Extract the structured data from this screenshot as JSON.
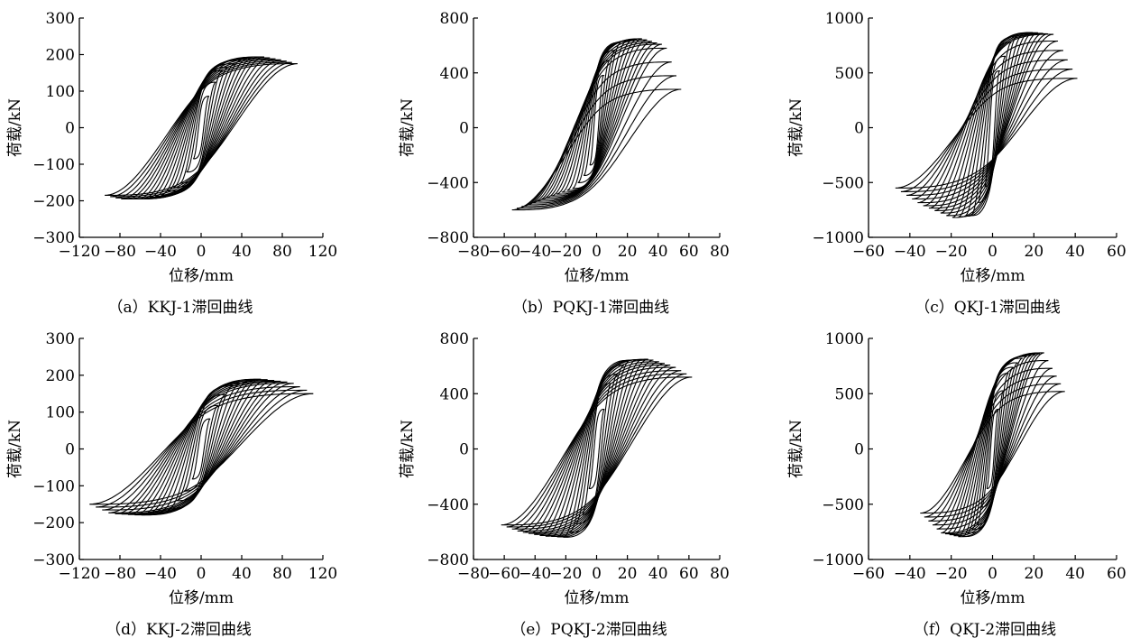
{
  "figure": {
    "panels": [
      {
        "caption": "（a）KKJ-1滞回曲线"
      },
      {
        "caption": "（b）PQKJ-1滞回曲线"
      },
      {
        "caption": "（c）QKJ-1滞回曲线"
      },
      {
        "caption": "（d）KKJ-2滞回曲线"
      },
      {
        "caption": "（e）PQKJ-2滞回曲线"
      },
      {
        "caption": "（f）QKJ-2滞回曲线"
      }
    ]
  },
  "chart_data": [
    {
      "type": "line",
      "title": "（a）KKJ-1滞回曲线",
      "xlabel": "位移/mm",
      "ylabel": "荷载/kN",
      "xlim": [
        -120,
        120
      ],
      "ylim": [
        -300,
        300
      ],
      "xticks": [
        -120,
        -80,
        -40,
        0,
        40,
        80,
        120
      ],
      "yticks": [
        -300,
        -200,
        -100,
        0,
        100,
        200,
        300
      ],
      "xtick_labels": [
        "−120",
        "−80",
        "−40",
        "0",
        "40",
        "80",
        "120"
      ],
      "ytick_labels": [
        "−300",
        "−200",
        "−100",
        "0",
        "100",
        "200",
        "300"
      ],
      "grid": false,
      "color": "#000000",
      "envelope": {
        "displacement_mm": [
          -95,
          -80,
          -60,
          -40,
          -20,
          -5,
          0,
          5,
          20,
          40,
          60,
          80,
          95
        ],
        "load_kN": [
          -185,
          -195,
          -195,
          -185,
          -150,
          -70,
          0,
          70,
          155,
          185,
          195,
          185,
          175
        ]
      }
    },
    {
      "type": "line",
      "title": "（b）PQKJ-1滞回曲线",
      "xlabel": "位移/mm",
      "ylabel": "荷载/kN",
      "xlim": [
        -80,
        80
      ],
      "ylim": [
        -800,
        800
      ],
      "xticks": [
        -80,
        -60,
        -40,
        -20,
        0,
        20,
        40,
        60,
        80
      ],
      "yticks": [
        -800,
        -400,
        0,
        400,
        800
      ],
      "xtick_labels": [
        "−80",
        "−60",
        "−40",
        "−20",
        "0",
        "20",
        "40",
        "60",
        "80"
      ],
      "ytick_labels": [
        "−800",
        "−400",
        "0",
        "400",
        "800"
      ],
      "grid": false,
      "color": "#000000",
      "envelope": {
        "displacement_mm": [
          -55,
          -45,
          -30,
          -15,
          -5,
          0,
          5,
          15,
          30,
          45,
          55
        ],
        "load_kN": [
          -600,
          -560,
          -500,
          -440,
          -300,
          0,
          420,
          620,
          650,
          600,
          280
        ]
      }
    },
    {
      "type": "line",
      "title": "（c）QKJ-1滞回曲线",
      "xlabel": "位移/mm",
      "ylabel": "荷载/kN",
      "xlim": [
        -60,
        60
      ],
      "ylim": [
        -1000,
        1000
      ],
      "xticks": [
        -60,
        -40,
        -20,
        0,
        20,
        40,
        60
      ],
      "yticks": [
        -1000,
        -500,
        0,
        500,
        1000
      ],
      "xtick_labels": [
        "−60",
        "−40",
        "−20",
        "0",
        "20",
        "40",
        "60"
      ],
      "ytick_labels": [
        "−1000",
        "−500",
        "0",
        "500",
        "1000"
      ],
      "grid": false,
      "color": "#000000",
      "envelope": {
        "displacement_mm": [
          -47,
          -35,
          -20,
          -10,
          -3,
          0,
          3,
          10,
          20,
          30,
          41
        ],
        "load_kN": [
          -550,
          -700,
          -820,
          -800,
          -500,
          0,
          500,
          820,
          870,
          850,
          450
        ]
      }
    },
    {
      "type": "line",
      "title": "（d）KKJ-2滞回曲线",
      "xlabel": "位移/mm",
      "ylabel": "荷载/kN",
      "xlim": [
        -120,
        120
      ],
      "ylim": [
        -300,
        300
      ],
      "xticks": [
        -120,
        -80,
        -40,
        0,
        40,
        80,
        120
      ],
      "yticks": [
        -300,
        -200,
        -100,
        0,
        100,
        200,
        300
      ],
      "xtick_labels": [
        "−120",
        "−80",
        "−40",
        "0",
        "40",
        "80",
        "120"
      ],
      "ytick_labels": [
        "−300",
        "−200",
        "−100",
        "0",
        "100",
        "200",
        "300"
      ],
      "grid": false,
      "color": "#000000",
      "envelope": {
        "displacement_mm": [
          -110,
          -90,
          -60,
          -30,
          -10,
          0,
          10,
          30,
          60,
          90,
          110
        ],
        "load_kN": [
          -150,
          -175,
          -180,
          -160,
          -90,
          0,
          90,
          170,
          190,
          180,
          150
        ]
      }
    },
    {
      "type": "line",
      "title": "（e）PQKJ-2滞回曲线",
      "xlabel": "位移/mm",
      "ylabel": "荷载/kN",
      "xlim": [
        -80,
        80
      ],
      "ylim": [
        -800,
        800
      ],
      "xticks": [
        -80,
        -60,
        -40,
        -20,
        0,
        20,
        40,
        60,
        80
      ],
      "yticks": [
        -800,
        -400,
        0,
        400,
        800
      ],
      "xtick_labels": [
        "−80",
        "−60",
        "−40",
        "−20",
        "0",
        "20",
        "40",
        "60",
        "80"
      ],
      "ytick_labels": [
        "−800",
        "−400",
        "0",
        "400",
        "800"
      ],
      "grid": false,
      "color": "#000000",
      "envelope": {
        "displacement_mm": [
          -62,
          -50,
          -35,
          -20,
          -8,
          0,
          8,
          20,
          35,
          50,
          62
        ],
        "load_kN": [
          -550,
          -600,
          -630,
          -640,
          -450,
          0,
          450,
          640,
          650,
          600,
          520
        ]
      }
    },
    {
      "type": "line",
      "title": "（f）QKJ-2滞回曲线",
      "xlabel": "位移/mm",
      "ylabel": "荷载/kN",
      "xlim": [
        -60,
        60
      ],
      "ylim": [
        -1000,
        1000
      ],
      "xticks": [
        -60,
        -40,
        -20,
        0,
        20,
        40,
        60
      ],
      "yticks": [
        -1000,
        -500,
        0,
        500,
        1000
      ],
      "xtick_labels": [
        "−60",
        "−40",
        "−20",
        "0",
        "20",
        "40",
        "60"
      ],
      "ytick_labels": [
        "−1000",
        "−500",
        "0",
        "500",
        "1000"
      ],
      "grid": false,
      "color": "#000000",
      "envelope": {
        "displacement_mm": [
          -35,
          -25,
          -15,
          -8,
          -2,
          0,
          2,
          8,
          15,
          25,
          35
        ],
        "load_kN": [
          -580,
          -760,
          -800,
          -700,
          -300,
          0,
          300,
          700,
          830,
          870,
          520
        ]
      }
    }
  ]
}
